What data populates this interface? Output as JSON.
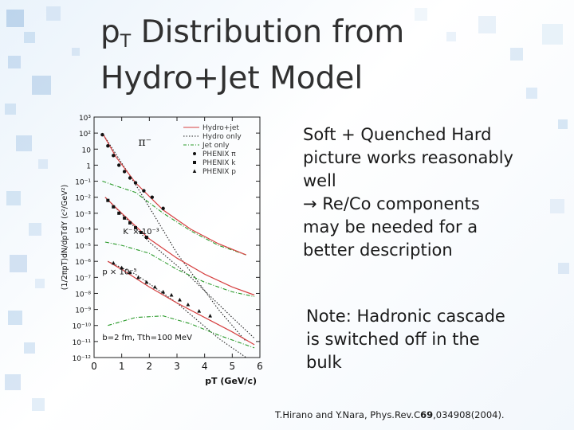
{
  "slide": {
    "title_line1_main": "p",
    "title_line1_sub": "T",
    "title_line1_rest": " Distribution from",
    "title_line2": "Hydro+Jet Model",
    "bullet1": [
      "Soft + Quenched Hard",
      "picture works reasonably",
      "well",
      "→ Re/Co components",
      "may be needed for a",
      "better description"
    ],
    "note": [
      "Note: Hadronic cascade",
      "is switched off in the",
      "bulk"
    ],
    "citation": {
      "pre": "T.Hirano and Y.Nara, Phys.Rev.C",
      "volume": "69",
      "post": ",034908(2004)."
    }
  },
  "chart_data": {
    "type": "line",
    "title": "",
    "xlabel": "pT (GeV/c)",
    "ylabel": "(1/2πpT)dN/dpTdY (c²/GeV²)",
    "xlim": [
      0,
      6
    ],
    "ylim_log10": [
      -12,
      3
    ],
    "x_ticks": [
      "0",
      "1",
      "2",
      "3",
      "4",
      "5",
      "6"
    ],
    "y_ticks": [
      "10³",
      "10²",
      "10",
      "1",
      "10⁻¹",
      "10⁻²",
      "10⁻³",
      "10⁻⁴",
      "10⁻⁵",
      "10⁻⁶",
      "10⁻⁷",
      "10⁻⁸",
      "10⁻⁹",
      "10⁻¹⁰",
      "10⁻¹¹",
      "10⁻¹²"
    ],
    "legend": {
      "placement": "top-right",
      "entries": [
        {
          "label": "Hydro+jet",
          "style": "solid",
          "color": "#d64040"
        },
        {
          "label": "Hydro only",
          "style": "dotted",
          "color": "#222222"
        },
        {
          "label": "Jet only",
          "style": "dash-dot",
          "color": "#2a9a2a"
        },
        {
          "label": "PHENIX π",
          "marker": "circle",
          "color": "#111111"
        },
        {
          "label": "PHENIX k",
          "marker": "square",
          "color": "#111111"
        },
        {
          "label": "PHENIX p",
          "marker": "triangle",
          "color": "#111111"
        }
      ]
    },
    "annotations": {
      "pion": "π⁻",
      "kaon": "K⁻× 10⁻³",
      "proton": "p × 10⁻⁵",
      "params": "b=2 fm, Tth=100 MeV"
    },
    "groups": [
      {
        "name": "π⁻",
        "hydro_jet": {
          "x": [
            0.3,
            0.8,
            1.5,
            2.5,
            3.5,
            4.5,
            5.5
          ],
          "y_log10": [
            2.0,
            0.5,
            -1.1,
            -2.8,
            -4.0,
            -4.9,
            -5.6
          ]
        },
        "hydro_only": {
          "x": [
            0.3,
            1.5,
            3.0,
            4.5,
            5.5
          ],
          "y_log10": [
            2.0,
            -1.2,
            -5.5,
            -9.0,
            -11.0
          ]
        },
        "jet_only": {
          "x": [
            0.3,
            0.8,
            1.5,
            2.5,
            3.5,
            4.5,
            5.5
          ],
          "y_log10": [
            -1.0,
            -1.3,
            -1.7,
            -3.0,
            -4.1,
            -5.0,
            -5.6
          ]
        },
        "data": {
          "x": [
            0.3,
            0.5,
            0.7,
            0.9,
            1.1,
            1.3,
            1.5,
            1.8,
            2.1,
            2.5
          ],
          "y_log10": [
            1.9,
            1.2,
            0.6,
            0.0,
            -0.4,
            -0.8,
            -1.1,
            -1.6,
            -2.0,
            -2.7
          ]
        }
      },
      {
        "name": "K⁻× 10⁻³",
        "hydro_jet": {
          "x": [
            0.4,
            1.0,
            2.0,
            3.0,
            4.0,
            5.0,
            5.8
          ],
          "y_log10": [
            -2.0,
            -3.0,
            -4.6,
            -5.8,
            -6.8,
            -7.6,
            -8.1
          ]
        },
        "hydro_only": {
          "x": [
            0.4,
            2.0,
            3.5,
            5.0,
            5.8
          ],
          "y_log10": [
            -2.0,
            -4.8,
            -7.0,
            -9.5,
            -10.8
          ]
        },
        "jet_only": {
          "x": [
            0.4,
            1.0,
            2.0,
            3.0,
            4.0,
            5.0,
            5.8
          ],
          "y_log10": [
            -4.8,
            -5.0,
            -5.5,
            -6.5,
            -7.3,
            -7.9,
            -8.2
          ]
        },
        "data": {
          "x": [
            0.5,
            0.7,
            0.9,
            1.1,
            1.3,
            1.5,
            1.7,
            1.9
          ],
          "y_log10": [
            -2.2,
            -2.6,
            -3.0,
            -3.3,
            -3.6,
            -3.9,
            -4.2,
            -4.5
          ]
        }
      },
      {
        "name": "p × 10⁻⁵",
        "hydro_jet": {
          "x": [
            0.5,
            1.0,
            2.0,
            3.0,
            4.0,
            5.0,
            5.8
          ],
          "y_log10": [
            -6.0,
            -6.5,
            -7.6,
            -8.6,
            -9.5,
            -10.4,
            -11.2
          ]
        },
        "hydro_only": {
          "x": [
            0.5,
            1.5,
            3.0,
            4.5,
            5.5
          ],
          "y_log10": [
            -6.0,
            -6.8,
            -8.6,
            -10.8,
            -12.0
          ]
        },
        "jet_only": {
          "x": [
            0.5,
            1.5,
            2.5,
            3.5,
            4.5,
            5.8
          ],
          "y_log10": [
            -10.0,
            -9.5,
            -9.4,
            -9.9,
            -10.6,
            -11.4
          ]
        },
        "data": {
          "x": [
            0.7,
            1.0,
            1.3,
            1.6,
            1.9,
            2.2,
            2.5,
            2.8,
            3.1,
            3.4,
            3.8,
            4.2
          ],
          "y_log10": [
            -6.1,
            -6.4,
            -6.7,
            -7.0,
            -7.3,
            -7.6,
            -7.9,
            -8.1,
            -8.4,
            -8.7,
            -9.1,
            -9.4
          ]
        }
      }
    ]
  }
}
